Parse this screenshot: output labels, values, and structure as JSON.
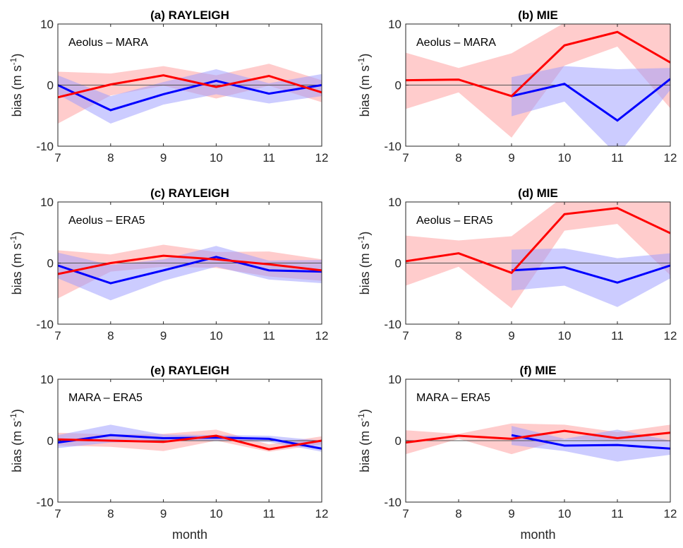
{
  "figure": {
    "xlabel": "month",
    "ylabel_main": "bias (m s",
    "ylabel_sup": "-1",
    "ylabel_close": ")",
    "colors": {
      "red_line": "#ff0000",
      "blue_line": "#0000ff",
      "red_band": "#ff9999",
      "blue_band": "#9999ff",
      "zero_line": "#555555",
      "axes": "#262626"
    }
  },
  "chart_data": [
    {
      "id": "a",
      "type": "line",
      "title": "(a) RAYLEIGH",
      "annotation": "Aeolus – MARA",
      "xlabel": "",
      "ylabel": "bias (m s-1)",
      "x": [
        7,
        8,
        9,
        10,
        11,
        12
      ],
      "xlim": [
        7,
        12
      ],
      "ylim": [
        -10,
        10
      ],
      "xticks": [
        "7",
        "8",
        "9",
        "10",
        "11",
        "12"
      ],
      "yticks": [
        "-10",
        "0",
        "10"
      ],
      "series": [
        {
          "name": "red",
          "color": "#ff0000",
          "x": [
            7,
            8,
            9,
            10,
            11,
            12
          ],
          "values": [
            -2.0,
            0.1,
            1.6,
            -0.3,
            1.5,
            -1.2
          ],
          "upper": [
            2.2,
            1.9,
            3.1,
            1.6,
            3.5,
            0.8
          ],
          "lower": [
            -6.3,
            -1.7,
            -0.1,
            -2.2,
            -0.1,
            -2.8
          ]
        },
        {
          "name": "blue",
          "color": "#0000ff",
          "x": [
            7,
            8,
            9,
            10,
            11,
            12
          ],
          "values": [
            0.0,
            -4.1,
            -1.5,
            0.7,
            -1.4,
            0.0
          ],
          "upper": [
            1.6,
            -1.8,
            0.5,
            2.6,
            0.3,
            1.8
          ],
          "lower": [
            -1.5,
            -6.3,
            -3.2,
            -1.5,
            -3.0,
            -1.8
          ]
        }
      ]
    },
    {
      "id": "b",
      "type": "line",
      "title": "(b) MIE",
      "annotation": "Aeolus – MARA",
      "xlabel": "",
      "ylabel": "bias (m s-1)",
      "x": [
        7,
        8,
        9,
        10,
        11,
        12
      ],
      "xlim": [
        7,
        12
      ],
      "ylim": [
        -10,
        10
      ],
      "xticks": [
        "7",
        "8",
        "9",
        "10",
        "11",
        "12"
      ],
      "yticks": [
        "-10",
        "0",
        "10"
      ],
      "series": [
        {
          "name": "red",
          "color": "#ff0000",
          "x": [
            7,
            8,
            9,
            10,
            11,
            12
          ],
          "values": [
            0.8,
            0.9,
            -1.8,
            6.5,
            8.7,
            3.7
          ],
          "upper": [
            5.3,
            2.8,
            5.2,
            10.2,
            11.0,
            11.0
          ],
          "lower": [
            -3.9,
            -1.2,
            -8.6,
            3.2,
            6.3,
            -3.8
          ]
        },
        {
          "name": "blue",
          "color": "#0000ff",
          "x": [
            9,
            10,
            11,
            12
          ],
          "values": [
            -1.8,
            0.2,
            -5.8,
            1.0
          ],
          "upper": [
            1.3,
            3.1,
            2.6,
            2.8
          ],
          "lower": [
            -5.1,
            -2.7,
            -11.5,
            -0.8
          ]
        }
      ]
    },
    {
      "id": "c",
      "type": "line",
      "title": "(c) RAYLEIGH",
      "annotation": "Aeolus – ERA5",
      "xlabel": "",
      "ylabel": "bias (m s-1)",
      "x": [
        7,
        8,
        9,
        10,
        11,
        12
      ],
      "xlim": [
        7,
        12
      ],
      "ylim": [
        -10,
        10
      ],
      "xticks": [
        "7",
        "8",
        "9",
        "10",
        "11",
        "12"
      ],
      "yticks": [
        "-10",
        "0",
        "10"
      ],
      "series": [
        {
          "name": "red",
          "color": "#ff0000",
          "x": [
            7,
            8,
            9,
            10,
            11,
            12
          ],
          "values": [
            -1.8,
            0.0,
            1.2,
            0.6,
            -0.2,
            -1.2
          ],
          "upper": [
            2.1,
            1.4,
            3.0,
            1.8,
            1.9,
            0.6
          ],
          "lower": [
            -5.8,
            -1.4,
            -0.6,
            -0.8,
            -2.2,
            -2.9
          ]
        },
        {
          "name": "blue",
          "color": "#0000ff",
          "x": [
            7,
            8,
            9,
            10,
            11,
            12
          ],
          "values": [
            -0.4,
            -3.3,
            -1.2,
            1.0,
            -1.2,
            -1.4
          ],
          "upper": [
            1.7,
            -0.3,
            0.6,
            2.8,
            0.4,
            0.5
          ],
          "lower": [
            -2.5,
            -6.1,
            -2.9,
            -0.6,
            -2.7,
            -3.3
          ]
        }
      ]
    },
    {
      "id": "d",
      "type": "line",
      "title": "(d) MIE",
      "annotation": "Aeolus – ERA5",
      "xlabel": "",
      "ylabel": "bias (m s-1)",
      "x": [
        7,
        8,
        9,
        10,
        11,
        12
      ],
      "xlim": [
        7,
        12
      ],
      "ylim": [
        -10,
        10
      ],
      "xticks": [
        "7",
        "8",
        "9",
        "10",
        "11",
        "12"
      ],
      "yticks": [
        "-10",
        "0",
        "10"
      ],
      "series": [
        {
          "name": "red",
          "color": "#ff0000",
          "x": [
            7,
            8,
            9,
            10,
            11,
            12
          ],
          "values": [
            0.3,
            1.6,
            -1.6,
            8.0,
            9.0,
            4.9
          ],
          "upper": [
            4.5,
            3.7,
            4.4,
            11.0,
            11.0,
            11.0
          ],
          "lower": [
            -3.7,
            -0.6,
            -7.4,
            5.3,
            6.4,
            -2.0
          ]
        },
        {
          "name": "blue",
          "color": "#0000ff",
          "x": [
            9,
            10,
            11,
            12
          ],
          "values": [
            -1.2,
            -0.7,
            -3.2,
            -0.4
          ],
          "upper": [
            2.2,
            2.4,
            0.8,
            1.6
          ],
          "lower": [
            -4.5,
            -3.7,
            -7.2,
            -2.5
          ]
        }
      ]
    },
    {
      "id": "e",
      "type": "line",
      "title": "(e) RAYLEIGH",
      "annotation": "MARA – ERA5",
      "xlabel": "month",
      "ylabel": "bias (m s-1)",
      "x": [
        7,
        8,
        9,
        10,
        11,
        12
      ],
      "xlim": [
        7,
        12
      ],
      "ylim": [
        -10,
        10
      ],
      "xticks": [
        "7",
        "8",
        "9",
        "10",
        "11",
        "12"
      ],
      "yticks": [
        "-10",
        "0",
        "10"
      ],
      "series": [
        {
          "name": "red",
          "color": "#ff0000",
          "x": [
            7,
            8,
            9,
            10,
            11,
            12
          ],
          "values": [
            0.2,
            0.0,
            -0.2,
            0.8,
            -1.4,
            0.0
          ],
          "upper": [
            1.3,
            1.0,
            1.1,
            1.8,
            -0.6,
            0.7
          ],
          "lower": [
            -0.8,
            -1.0,
            -1.7,
            0.0,
            -1.8,
            -0.6
          ]
        },
        {
          "name": "blue",
          "color": "#0000ff",
          "x": [
            7,
            8,
            9,
            10,
            11,
            12
          ],
          "values": [
            -0.3,
            0.9,
            0.4,
            0.5,
            0.3,
            -1.3
          ],
          "upper": [
            0.9,
            2.6,
            1.0,
            0.9,
            0.8,
            0.0
          ],
          "lower": [
            -1.2,
            -0.3,
            -0.1,
            0.0,
            -0.2,
            -1.8
          ]
        }
      ]
    },
    {
      "id": "f",
      "type": "line",
      "title": "(f) MIE",
      "annotation": "MARA – ERA5",
      "xlabel": "month",
      "ylabel": "bias (m s-1)",
      "x": [
        7,
        8,
        9,
        10,
        11,
        12
      ],
      "xlim": [
        7,
        12
      ],
      "ylim": [
        -10,
        10
      ],
      "xticks": [
        "7",
        "8",
        "9",
        "10",
        "11",
        "12"
      ],
      "yticks": [
        "-10",
        "0",
        "10"
      ],
      "series": [
        {
          "name": "red",
          "color": "#ff0000",
          "x": [
            7,
            8,
            9,
            10,
            11,
            12
          ],
          "values": [
            -0.3,
            0.8,
            0.3,
            1.6,
            0.4,
            1.3
          ],
          "upper": [
            1.7,
            1.1,
            2.8,
            2.6,
            1.4,
            2.6
          ],
          "lower": [
            -2.2,
            0.3,
            -2.2,
            0.3,
            0.0,
            -0.2
          ]
        },
        {
          "name": "blue",
          "color": "#0000ff",
          "x": [
            9,
            10,
            11,
            12
          ],
          "values": [
            0.9,
            -0.8,
            -0.7,
            -1.3
          ],
          "upper": [
            2.4,
            0.3,
            1.8,
            0.0
          ],
          "lower": [
            -0.7,
            -1.7,
            -3.4,
            -2.3
          ]
        }
      ]
    }
  ]
}
